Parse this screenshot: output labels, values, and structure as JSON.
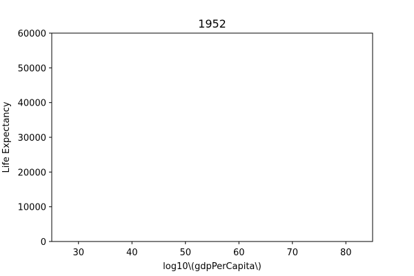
{
  "chart_data": {
    "type": "scatter",
    "title": "1952",
    "xlabel": "log10\\(gdpPerCapita\\)",
    "ylabel": "Life Expectancy",
    "xlim": [
      25,
      85
    ],
    "ylim": [
      0,
      60000
    ],
    "x_ticks": [
      30,
      40,
      50,
      60,
      70,
      80
    ],
    "y_ticks": [
      0,
      10000,
      20000,
      30000,
      40000,
      50000,
      60000
    ],
    "grid": false,
    "series": []
  }
}
